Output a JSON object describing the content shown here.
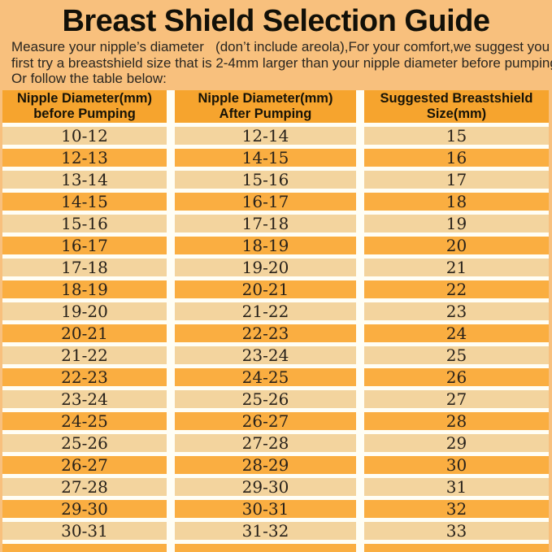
{
  "page": {
    "title": "Breast Shield Selection Guide",
    "intro": {
      "line1": "Measure your nipple’s diameter   (don’t include areola),For your comfort,we suggest you",
      "line2": "first try a breastshield size that is 2-4mm larger than your nipple diameter before pumping.",
      "line3": "Or follow the table below:"
    }
  },
  "colors": {
    "page_bg": "#F8C07D",
    "header_bg": "#F6A42E",
    "row_light": "#F3D49E",
    "row_orange": "#FAAE41",
    "separator": "#FFFEF5",
    "text_dark": "#1E1B16"
  },
  "table": {
    "headers": [
      {
        "line1": "Nipple Diameter(mm)",
        "line2": "before Pumping"
      },
      {
        "line1": "Nipple Diameter(mm)",
        "line2": "After Pumping"
      },
      {
        "line1": "Suggested Breastshield",
        "line2": "Size(mm)"
      }
    ],
    "rows": [
      [
        "10-12",
        "12-14",
        "15"
      ],
      [
        "12-13",
        "14-15",
        "16"
      ],
      [
        "13-14",
        "15-16",
        "17"
      ],
      [
        "14-15",
        "16-17",
        "18"
      ],
      [
        "15-16",
        "17-18",
        "19"
      ],
      [
        "16-17",
        "18-19",
        "20"
      ],
      [
        "17-18",
        "19-20",
        "21"
      ],
      [
        "18-19",
        "20-21",
        "22"
      ],
      [
        "19-20",
        "21-22",
        "23"
      ],
      [
        "20-21",
        "22-23",
        "24"
      ],
      [
        "21-22",
        "23-24",
        "25"
      ],
      [
        "22-23",
        "24-25",
        "26"
      ],
      [
        "23-24",
        "25-26",
        "27"
      ],
      [
        "24-25",
        "26-27",
        "28"
      ],
      [
        "25-26",
        "27-28",
        "29"
      ],
      [
        "26-27",
        "28-29",
        "30"
      ],
      [
        "27-28",
        "29-30",
        "31"
      ],
      [
        "29-30",
        "30-31",
        "32"
      ],
      [
        "30-31",
        "31-32",
        "33"
      ]
    ]
  },
  "chart_data": {
    "type": "table",
    "title": "Breast Shield Selection Guide",
    "columns": [
      "Nipple Diameter(mm) before Pumping",
      "Nipple Diameter(mm) After Pumping",
      "Suggested Breastshield Size(mm)"
    ],
    "rows": [
      [
        "10-12",
        "12-14",
        "15"
      ],
      [
        "12-13",
        "14-15",
        "16"
      ],
      [
        "13-14",
        "15-16",
        "17"
      ],
      [
        "14-15",
        "16-17",
        "18"
      ],
      [
        "15-16",
        "17-18",
        "19"
      ],
      [
        "16-17",
        "18-19",
        "20"
      ],
      [
        "17-18",
        "19-20",
        "21"
      ],
      [
        "18-19",
        "20-21",
        "22"
      ],
      [
        "19-20",
        "21-22",
        "23"
      ],
      [
        "20-21",
        "22-23",
        "24"
      ],
      [
        "21-22",
        "23-24",
        "25"
      ],
      [
        "22-23",
        "24-25",
        "26"
      ],
      [
        "23-24",
        "25-26",
        "27"
      ],
      [
        "24-25",
        "26-27",
        "28"
      ],
      [
        "25-26",
        "27-28",
        "29"
      ],
      [
        "26-27",
        "28-29",
        "30"
      ],
      [
        "27-28",
        "29-30",
        "31"
      ],
      [
        "29-30",
        "30-31",
        "32"
      ],
      [
        "30-31",
        "31-32",
        "33"
      ]
    ]
  }
}
